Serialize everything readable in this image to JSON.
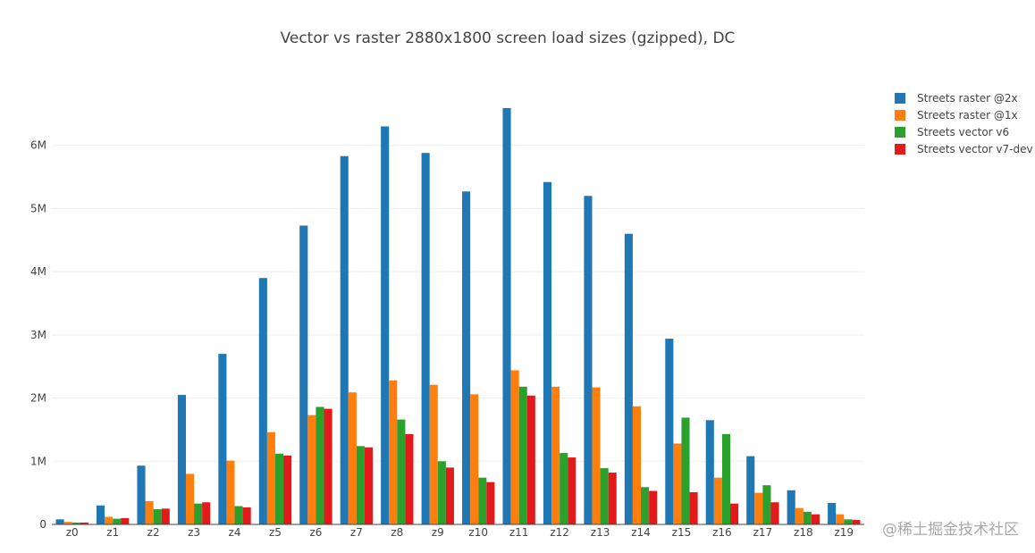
{
  "chart_data": {
    "type": "bar",
    "title": "Vector vs raster 2880x1800 screen load sizes (gzipped), DC",
    "xlabel": "",
    "ylabel": "",
    "categories": [
      "z0",
      "z1",
      "z2",
      "z3",
      "z4",
      "z5",
      "z6",
      "z7",
      "z8",
      "z9",
      "z10",
      "z11",
      "z12",
      "z13",
      "z14",
      "z15",
      "z16",
      "z17",
      "z18",
      "z19"
    ],
    "ylim": [
      0,
      7000000
    ],
    "yticks": [
      0,
      1000000,
      2000000,
      3000000,
      4000000,
      5000000,
      6000000
    ],
    "ytick_labels": [
      "0",
      "1M",
      "2M",
      "3M",
      "4M",
      "5M",
      "6M"
    ],
    "grid": true,
    "legend_position": "top-right",
    "series": [
      {
        "name": "Streets raster @2x",
        "color": "#1f77b4",
        "values": [
          80000,
          300000,
          930000,
          2050000,
          2700000,
          3900000,
          4730000,
          5830000,
          6300000,
          5880000,
          5270000,
          6590000,
          5420000,
          5200000,
          4600000,
          2940000,
          1650000,
          1080000,
          540000,
          340000
        ]
      },
      {
        "name": "Streets raster @1x",
        "color": "#ff7f0e",
        "values": [
          40000,
          120000,
          370000,
          800000,
          1010000,
          1460000,
          1730000,
          2090000,
          2280000,
          2210000,
          2060000,
          2440000,
          2180000,
          2170000,
          1870000,
          1280000,
          740000,
          500000,
          260000,
          160000
        ]
      },
      {
        "name": "Streets vector v6",
        "color": "#2ca02c",
        "values": [
          30000,
          90000,
          240000,
          330000,
          290000,
          1120000,
          1860000,
          1240000,
          1660000,
          1000000,
          740000,
          2180000,
          1130000,
          890000,
          590000,
          1690000,
          1430000,
          620000,
          200000,
          80000
        ]
      },
      {
        "name": "Streets vector v7-dev",
        "color": "#e31a1c",
        "values": [
          30000,
          100000,
          250000,
          350000,
          270000,
          1090000,
          1830000,
          1220000,
          1430000,
          900000,
          670000,
          2040000,
          1060000,
          820000,
          530000,
          510000,
          330000,
          350000,
          160000,
          70000
        ]
      }
    ]
  },
  "watermark": "@稀土掘金技术社区"
}
